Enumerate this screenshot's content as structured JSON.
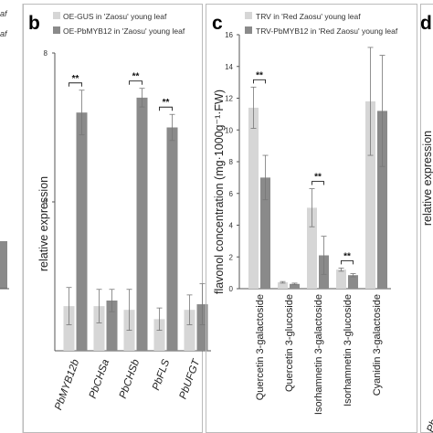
{
  "panels": {
    "a": {
      "legend_fragment_1": "af",
      "legend_fragment_2": "af"
    },
    "b": {
      "letter": "b"
    },
    "c": {
      "letter": "c"
    },
    "d": {
      "letter": "d",
      "ylabel": "relative expression",
      "cat_fragment": "Pb"
    }
  },
  "colors": {
    "light": "#d6d6d6",
    "dark": "#8a8a8a",
    "axis": "#555555",
    "frame": "#bbbbbb"
  },
  "chart_data": [
    {
      "panel": "b",
      "type": "bar",
      "ylabel": "relative expression",
      "ylim": [
        0,
        8
      ],
      "yticks": [
        4,
        8
      ],
      "categories": [
        "PbMYB12b",
        "PbCHSa",
        "PbCHSb",
        "PbFLS",
        "PbUFGT"
      ],
      "series": [
        {
          "name": "OE-GUS in 'Zaosu' young leaf",
          "color": "#d6d6d6",
          "values": [
            1.2,
            1.2,
            1.1,
            0.85,
            1.1
          ],
          "errors": [
            0.5,
            0.45,
            0.55,
            0.3,
            0.4
          ]
        },
        {
          "name": "OE-PbMYB12 in 'Zaosu' young leaf",
          "color": "#8a8a8a",
          "values": [
            6.4,
            1.35,
            6.8,
            6.0,
            1.25
          ],
          "errors": [
            0.6,
            0.3,
            0.25,
            0.35,
            0.55
          ]
        }
      ],
      "significance": [
        {
          "category": "PbMYB12b",
          "label": "**"
        },
        {
          "category": "PbCHSb",
          "label": "**"
        },
        {
          "category": "PbFLS",
          "label": "**"
        }
      ]
    },
    {
      "panel": "c",
      "type": "bar",
      "ylabel": "flavonol concentration (mg·1000g⁻¹·FW)",
      "ylim": [
        0,
        16
      ],
      "yticks": [
        0,
        2,
        4,
        6,
        8,
        10,
        12,
        14,
        16
      ],
      "categories": [
        "Quercetin 3-galactoside",
        "Quercetin 3-glucoside",
        "Isorhamnetin 3-galactoside",
        "Isorhamnetin 3-glucoside",
        "Cyanidin 3-galactoside"
      ],
      "series": [
        {
          "name": "TRV in 'Red Zaosu' young leaf",
          "color": "#d6d6d6",
          "values": [
            11.4,
            0.4,
            5.1,
            1.2,
            11.8
          ],
          "errors": [
            1.3,
            0.05,
            1.2,
            0.1,
            3.4
          ]
        },
        {
          "name": "TRV-PbMYB12 in 'Red Zaosu' young leaf",
          "color": "#8a8a8a",
          "values": [
            7.0,
            0.3,
            2.1,
            0.85,
            11.2
          ],
          "errors": [
            1.4,
            0.05,
            1.2,
            0.1,
            3.5
          ]
        }
      ],
      "significance": [
        {
          "category": "Quercetin 3-galactoside",
          "label": "**"
        },
        {
          "category": "Isorhamnetin 3-galactoside",
          "label": "**"
        },
        {
          "category": "Isorhamnetin 3-glucoside",
          "label": "**"
        }
      ]
    }
  ]
}
